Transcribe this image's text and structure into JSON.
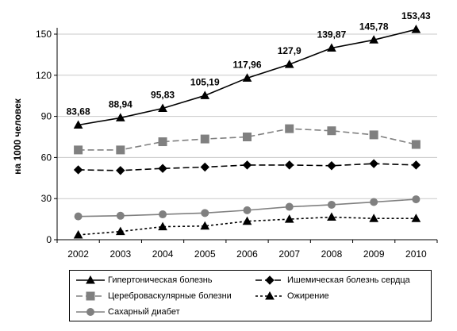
{
  "chart_data": {
    "type": "line",
    "title": "",
    "xlabel": "",
    "ylabel": "на 1000 человек",
    "categories": [
      "2002",
      "2003",
      "2004",
      "2005",
      "2006",
      "2007",
      "2008",
      "2009",
      "2010"
    ],
    "ylim": [
      0,
      150
    ],
    "yticks": [
      "0",
      "30",
      "60",
      "90",
      "120",
      "150"
    ],
    "grid": "horizontal",
    "legend_position": "bottom",
    "series": [
      {
        "name": "Гипертоническая болезнь",
        "values": [
          83.68,
          88.94,
          95.83,
          105.19,
          117.96,
          127.9,
          139.87,
          145.78,
          153.43
        ],
        "labels": [
          "83,68",
          "88,94",
          "95,83",
          "105,19",
          "117,96",
          "127,9",
          "139,87",
          "145,78",
          "153,43"
        ],
        "color": "#000000",
        "marker": "triangle",
        "dash": "solid"
      },
      {
        "name": "Ишемическая болезнь сердца",
        "values": [
          51,
          50.5,
          52,
          53,
          54.5,
          54.5,
          54,
          55.5,
          54.5
        ],
        "color": "#000000",
        "marker": "diamond",
        "dash": "dashed"
      },
      {
        "name": "Цереброваскулярные болезни",
        "values": [
          65.5,
          65.5,
          71.5,
          73.5,
          75,
          81,
          79.5,
          76.5,
          69.5
        ],
        "color": "#808080",
        "marker": "square",
        "dash": "dashed"
      },
      {
        "name": "Ожирение",
        "values": [
          3.5,
          6,
          9.5,
          10,
          13.5,
          15,
          16.5,
          15.5,
          15.5
        ],
        "color": "#000000",
        "marker": "triangle",
        "dash": "dotted"
      },
      {
        "name": "Сахарный диабет",
        "values": [
          17,
          17.5,
          18.5,
          19.5,
          21.5,
          24,
          25.5,
          27.5,
          29.5
        ],
        "color": "#808080",
        "marker": "circle",
        "dash": "solid"
      }
    ]
  }
}
